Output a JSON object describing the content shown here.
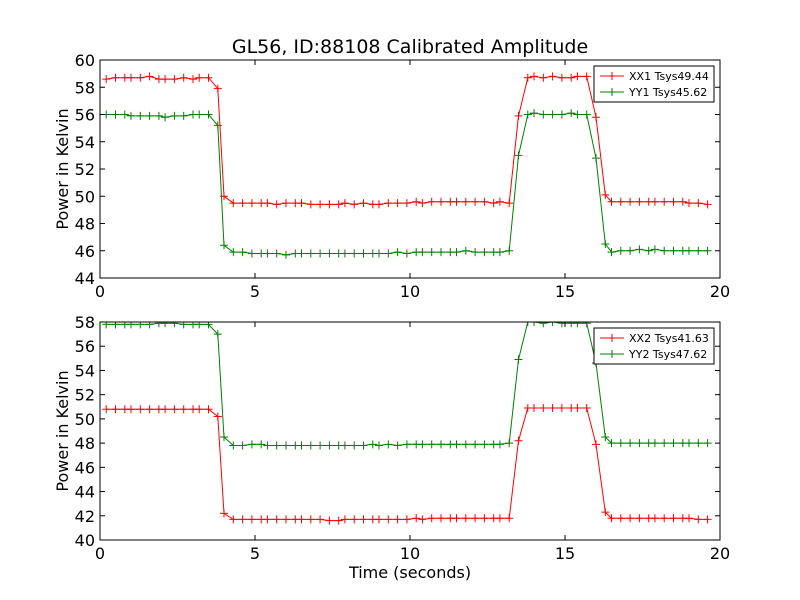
{
  "chart_data": [
    {
      "type": "line",
      "title": "GL56, ID:88108 Calibrated Amplitude",
      "xlabel": "",
      "ylabel": "Power in Kelvin",
      "xlim": [
        0,
        20
      ],
      "ylim": [
        44,
        60
      ],
      "xticks": [
        "0",
        "5",
        "10",
        "15",
        "20"
      ],
      "yticks": [
        "44",
        "46",
        "48",
        "50",
        "52",
        "54",
        "56",
        "58",
        "60"
      ],
      "legend_position": "top-right",
      "grid": false,
      "x": [
        0.2,
        0.5,
        0.8,
        1.0,
        1.3,
        1.6,
        1.9,
        2.1,
        2.4,
        2.7,
        3.0,
        3.2,
        3.5,
        3.8,
        4.0,
        4.3,
        4.6,
        4.9,
        5.2,
        5.4,
        5.7,
        6.0,
        6.3,
        6.5,
        6.8,
        7.1,
        7.4,
        7.7,
        7.9,
        8.2,
        8.5,
        8.8,
        9.0,
        9.3,
        9.6,
        9.9,
        10.2,
        10.4,
        10.7,
        11.0,
        11.3,
        11.5,
        11.8,
        12.1,
        12.4,
        12.7,
        12.9,
        13.2,
        13.5,
        13.8,
        14.0,
        14.3,
        14.6,
        14.9,
        15.2,
        15.4,
        15.7,
        16.0,
        16.3,
        16.5,
        16.8,
        17.1,
        17.4,
        17.7,
        17.9,
        18.2,
        18.5,
        18.8,
        19.0,
        19.3,
        19.6
      ],
      "series": [
        {
          "name": "XX1 Tsys49.44",
          "color": "#ff0000",
          "values": [
            58.6,
            58.7,
            58.7,
            58.7,
            58.7,
            58.8,
            58.6,
            58.6,
            58.6,
            58.7,
            58.6,
            58.7,
            58.7,
            57.9,
            50.0,
            49.5,
            49.5,
            49.5,
            49.5,
            49.5,
            49.4,
            49.5,
            49.5,
            49.5,
            49.4,
            49.4,
            49.4,
            49.4,
            49.5,
            49.4,
            49.5,
            49.4,
            49.4,
            49.5,
            49.5,
            49.5,
            49.6,
            49.5,
            49.6,
            49.6,
            49.6,
            49.6,
            49.6,
            49.6,
            49.6,
            49.5,
            49.6,
            49.5,
            55.9,
            58.7,
            58.8,
            58.7,
            58.8,
            58.7,
            58.7,
            58.8,
            58.8,
            55.8,
            50.1,
            49.6,
            49.6,
            49.6,
            49.6,
            49.6,
            49.6,
            49.6,
            49.6,
            49.6,
            49.5,
            49.5,
            49.4
          ]
        },
        {
          "name": "YY1 Tsys45.62",
          "color": "#008000",
          "values": [
            56.0,
            56.0,
            56.0,
            55.9,
            55.9,
            55.9,
            55.9,
            55.8,
            55.9,
            55.9,
            56.0,
            56.0,
            56.0,
            55.2,
            46.4,
            45.9,
            45.9,
            45.8,
            45.8,
            45.8,
            45.8,
            45.7,
            45.8,
            45.8,
            45.8,
            45.8,
            45.8,
            45.8,
            45.8,
            45.8,
            45.8,
            45.8,
            45.8,
            45.8,
            45.9,
            45.8,
            45.9,
            45.9,
            45.9,
            45.9,
            45.9,
            45.9,
            46.0,
            45.9,
            45.9,
            45.9,
            45.9,
            46.0,
            53.0,
            56.0,
            56.1,
            56.0,
            56.0,
            56.0,
            56.1,
            56.0,
            56.0,
            52.8,
            46.5,
            45.9,
            46.0,
            46.0,
            46.1,
            46.0,
            46.1,
            46.0,
            46.0,
            46.0,
            46.0,
            46.0,
            46.0
          ]
        }
      ]
    },
    {
      "type": "line",
      "title": "",
      "xlabel": "Time (seconds)",
      "ylabel": "Power in Kelvin",
      "xlim": [
        0,
        20
      ],
      "ylim": [
        40,
        58
      ],
      "xticks": [
        "0",
        "5",
        "10",
        "15",
        "20"
      ],
      "yticks": [
        "40",
        "42",
        "44",
        "46",
        "48",
        "50",
        "52",
        "54",
        "56",
        "58"
      ],
      "legend_position": "top-right",
      "grid": false,
      "x": [
        0.2,
        0.5,
        0.8,
        1.0,
        1.3,
        1.6,
        1.9,
        2.1,
        2.4,
        2.7,
        3.0,
        3.2,
        3.5,
        3.8,
        4.0,
        4.3,
        4.6,
        4.9,
        5.2,
        5.4,
        5.7,
        6.0,
        6.3,
        6.5,
        6.8,
        7.1,
        7.4,
        7.7,
        7.9,
        8.2,
        8.5,
        8.8,
        9.0,
        9.3,
        9.6,
        9.9,
        10.2,
        10.4,
        10.7,
        11.0,
        11.3,
        11.5,
        11.8,
        12.1,
        12.4,
        12.7,
        12.9,
        13.2,
        13.5,
        13.8,
        14.0,
        14.3,
        14.6,
        14.9,
        15.2,
        15.4,
        15.7,
        16.0,
        16.3,
        16.5,
        16.8,
        17.1,
        17.4,
        17.7,
        17.9,
        18.2,
        18.5,
        18.8,
        19.0,
        19.3,
        19.6
      ],
      "series": [
        {
          "name": "XX2 Tsys41.63",
          "color": "#ff0000",
          "values": [
            50.8,
            50.8,
            50.8,
            50.8,
            50.8,
            50.8,
            50.8,
            50.8,
            50.8,
            50.8,
            50.8,
            50.8,
            50.8,
            50.2,
            42.2,
            41.7,
            41.7,
            41.7,
            41.7,
            41.7,
            41.7,
            41.7,
            41.7,
            41.7,
            41.7,
            41.7,
            41.6,
            41.6,
            41.7,
            41.7,
            41.7,
            41.7,
            41.7,
            41.7,
            41.7,
            41.7,
            41.8,
            41.7,
            41.8,
            41.8,
            41.8,
            41.8,
            41.8,
            41.8,
            41.8,
            41.8,
            41.8,
            41.8,
            48.2,
            50.9,
            50.9,
            50.9,
            50.9,
            50.9,
            50.9,
            50.9,
            50.9,
            47.9,
            42.3,
            41.8,
            41.8,
            41.8,
            41.8,
            41.8,
            41.8,
            41.8,
            41.8,
            41.8,
            41.8,
            41.7,
            41.7
          ]
        },
        {
          "name": "YY2 Tsys47.62",
          "color": "#008000",
          "values": [
            57.8,
            57.8,
            57.8,
            57.8,
            57.8,
            57.8,
            57.9,
            57.9,
            57.9,
            57.8,
            57.8,
            57.8,
            57.8,
            57.0,
            48.5,
            47.8,
            47.8,
            47.9,
            47.9,
            47.8,
            47.8,
            47.8,
            47.8,
            47.8,
            47.8,
            47.8,
            47.8,
            47.8,
            47.8,
            47.8,
            47.8,
            47.9,
            47.8,
            47.9,
            47.8,
            47.9,
            47.9,
            47.9,
            47.9,
            47.9,
            47.9,
            47.9,
            47.9,
            47.9,
            47.9,
            47.9,
            47.9,
            48.0,
            54.9,
            58.0,
            58.0,
            57.9,
            58.0,
            57.9,
            57.9,
            57.9,
            57.9,
            54.6,
            48.5,
            48.0,
            48.0,
            48.0,
            48.0,
            48.0,
            48.0,
            48.0,
            48.0,
            48.0,
            48.0,
            48.0,
            48.0
          ]
        }
      ]
    }
  ]
}
